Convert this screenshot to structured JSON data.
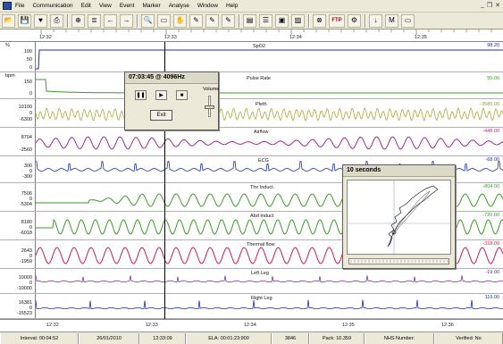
{
  "menu": {
    "items": [
      "File",
      "Communication",
      "Edit",
      "View",
      "Event",
      "Marker",
      "Analyse",
      "Window",
      "Help"
    ],
    "window_controls": [
      "_",
      "❐",
      "✕"
    ]
  },
  "toolbar": {
    "buttons": [
      {
        "icon": "open-folder-icon",
        "glyph": "📂"
      },
      {
        "icon": "save-icon",
        "glyph": "💾"
      },
      {
        "icon": "heart-icon",
        "glyph": "♥"
      },
      {
        "icon": "print-icon",
        "glyph": "⎙"
      },
      {
        "icon": "zoom-icon",
        "glyph": "⊕"
      },
      {
        "icon": "channel-icon",
        "glyph": "≣"
      },
      {
        "icon": "arrow-left-icon",
        "glyph": "←"
      },
      {
        "icon": "arrow-right-icon",
        "glyph": "→"
      },
      {
        "icon": "magnifier-icon",
        "glyph": "🔍"
      },
      {
        "icon": "select-icon",
        "glyph": "▭"
      },
      {
        "icon": "hand-icon",
        "glyph": "✋"
      },
      {
        "icon": "mark-icon",
        "glyph": "✎"
      },
      {
        "icon": "marker-b-icon",
        "glyph": "✎"
      },
      {
        "icon": "marker-c-icon",
        "glyph": "✎"
      },
      {
        "icon": "report-icon",
        "glyph": "▤"
      },
      {
        "icon": "montage-icon",
        "glyph": "☰"
      },
      {
        "icon": "image-icon",
        "glyph": "▣"
      },
      {
        "icon": "pdf-icon",
        "glyph": "▨"
      },
      {
        "icon": "sleep-icon",
        "glyph": "⊗"
      },
      {
        "icon": "ftp-icon",
        "label": "FTP"
      },
      {
        "icon": "tools-icon",
        "glyph": "⚙"
      },
      {
        "icon": "download-icon",
        "glyph": "↓"
      },
      {
        "icon": "marker-m-icon",
        "glyph": "M"
      },
      {
        "icon": "monitor-icon",
        "glyph": "▭"
      }
    ]
  },
  "ruler_top": {
    "ticks": [
      "12:32",
      "12:33",
      "12:34",
      "12:35"
    ]
  },
  "ruler_bottom": {
    "ticks": [
      "12:32",
      "12:33",
      "12:34",
      "12:35",
      "12:36"
    ]
  },
  "channels": [
    {
      "name": "SpO2",
      "unit": "%",
      "axis": [
        "100",
        "50",
        "0"
      ],
      "value": "98.20",
      "value_color": "#1a2ea8",
      "trace_color": "#1a2ea8"
    },
    {
      "name": "Pulse Rate",
      "unit": "bpm",
      "axis": [
        "150",
        "0"
      ],
      "value": "55.00",
      "value_color": "#3a9a26",
      "trace_color": "#3a9a26"
    },
    {
      "name": "Pleth",
      "unit": "",
      "axis": [
        "10100",
        "0",
        "-6300"
      ],
      "value": "-3585.00",
      "value_color": "#9a9a30",
      "trace_color": "#a8a838"
    },
    {
      "name": "Airflow",
      "unit": "",
      "axis": [
        "8704",
        "-2560"
      ],
      "value": "-448.00",
      "value_color": "#c02a7a",
      "trace_color": "#a02a8a"
    },
    {
      "name": "ECG",
      "unit": "",
      "axis": [
        "300",
        "0",
        "-300"
      ],
      "value": "-68.00",
      "value_color": "#1a2ea8",
      "trace_color": "#1a2ea8"
    },
    {
      "name": "Thx Induct.",
      "unit": "",
      "axis": [
        "7506",
        "0",
        "-5304"
      ],
      "value": "-804.00",
      "value_color": "#3a9a26",
      "trace_color": "#3a9a26"
    },
    {
      "name": "Abd Induct",
      "unit": "",
      "axis": [
        "8180",
        "0",
        "-6018"
      ],
      "value": "-720.00",
      "value_color": "#3a9a26",
      "trace_color": "#3a9a26"
    },
    {
      "name": "Thermal flow",
      "unit": "",
      "axis": [
        "2643",
        "0",
        "-1959"
      ],
      "value": "-318.00",
      "value_color": "#c02a4a",
      "trace_color": "#c81a5a"
    },
    {
      "name": "Left Leg",
      "unit": "",
      "axis": [
        "10000",
        "0",
        "-10000"
      ],
      "value": "-19.00",
      "value_color": "#5a2a8a",
      "trace_color": "#7a3a9a"
    },
    {
      "name": "Right Leg",
      "unit": "",
      "axis": [
        "16381",
        "0",
        "-15523"
      ],
      "value": "119.00",
      "value_color": "#1a2ea8",
      "trace_color": "#1a2ea8"
    }
  ],
  "statusbar": {
    "cells": [
      "Interval: 00:04:52",
      "26/01/2010",
      "12:33:09",
      "ELA: 00:01:23:900",
      "3846",
      "Pack: 10.359",
      "NHS Number:",
      "Verified: No"
    ]
  },
  "playback": {
    "time": "07:03:45",
    "rate": "@ 4096Hz",
    "pause_glyph": "❚❚",
    "play_glyph": "▶",
    "stop_glyph": "■",
    "volume_label": "Volume",
    "exit_label": "Exit"
  },
  "loop_window": {
    "title": "10 seconds"
  }
}
